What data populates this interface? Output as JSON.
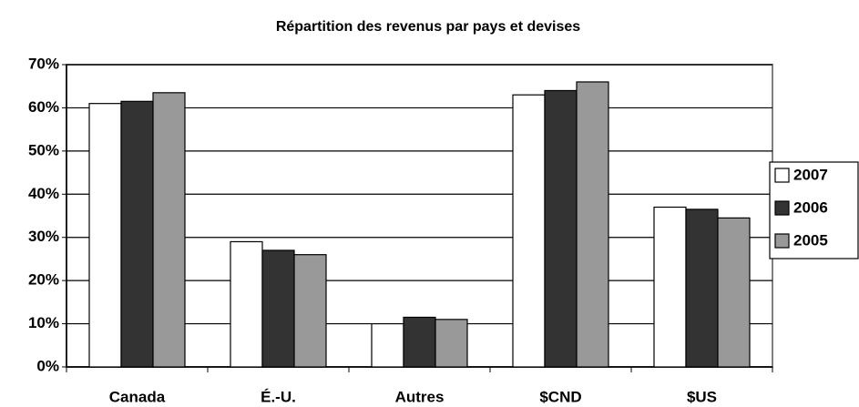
{
  "chart_data": {
    "type": "bar",
    "title": "Répartition des revenus par pays et devises",
    "categories": [
      "Canada",
      "É.-U.",
      "Autres",
      "$CND",
      "$US"
    ],
    "series": [
      {
        "name": "2007",
        "color": "#ffffff",
        "values": [
          61,
          29,
          10,
          63,
          37
        ]
      },
      {
        "name": "2006",
        "color": "#333333",
        "values": [
          61.5,
          27,
          11.5,
          64,
          36.5
        ]
      },
      {
        "name": "2005",
        "color": "#999999",
        "values": [
          63.5,
          26,
          11,
          66,
          34.5
        ]
      }
    ],
    "ylim": [
      0,
      70
    ],
    "yticks": [
      {
        "value": 0,
        "label": "0%"
      },
      {
        "value": 10,
        "label": "10%"
      },
      {
        "value": 20,
        "label": "20%"
      },
      {
        "value": 30,
        "label": "30%"
      },
      {
        "value": 40,
        "label": "40%"
      },
      {
        "value": 50,
        "label": "50%"
      },
      {
        "value": 60,
        "label": "60%"
      },
      {
        "value": 70,
        "label": "70%"
      }
    ],
    "grid": true,
    "legend": "right"
  }
}
